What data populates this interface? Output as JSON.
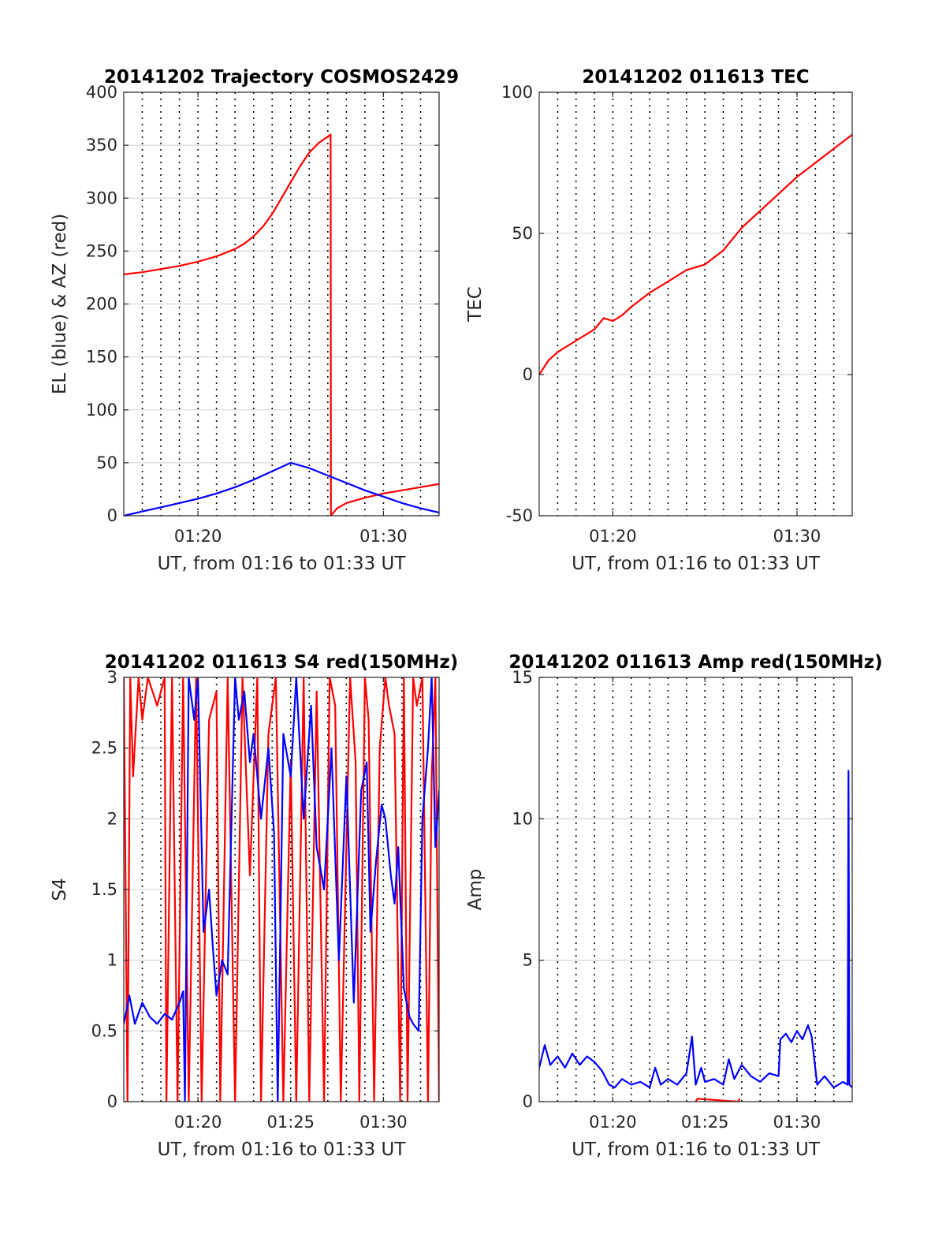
{
  "chart_data": [
    {
      "type": "line",
      "title": "20141202 Trajectory COSMOS2429",
      "xlabel": "UT, from 01:16 to 01:33 UT",
      "ylabel": "EL (blue) & AZ (red)",
      "xlim": [
        16.0,
        33.0
      ],
      "ylim": [
        0,
        400
      ],
      "xticks": [
        20,
        30
      ],
      "xticklabels": [
        "01:20",
        "01:30"
      ],
      "yticks": [
        0,
        50,
        100,
        150,
        200,
        250,
        300,
        350,
        400
      ],
      "yticklabels": [
        "0",
        "50",
        "100",
        "150",
        "200",
        "250",
        "300",
        "350",
        "400"
      ],
      "vertical_dotted_grid": true,
      "series": [
        {
          "color": "#ff0000",
          "x": [
            16.0,
            17,
            18,
            19,
            20,
            21,
            22,
            22.5,
            23,
            23.5,
            24,
            24.5,
            25,
            25.5,
            26,
            26.5,
            27.15,
            27.17,
            27.5,
            28,
            29,
            30,
            31,
            32,
            33
          ],
          "y": [
            228,
            230,
            233,
            236,
            240,
            245,
            252,
            257,
            264,
            273,
            285,
            300,
            315,
            330,
            343,
            352,
            360,
            0,
            7,
            12,
            17,
            21,
            24,
            27,
            30
          ]
        },
        {
          "color": "#0000ff",
          "x": [
            16.0,
            17,
            18,
            19,
            20,
            21,
            22,
            23,
            24,
            25,
            26,
            27,
            28,
            29,
            30,
            31,
            32,
            33
          ],
          "y": [
            0,
            4,
            8,
            12,
            16,
            21,
            27,
            34,
            42,
            50,
            45,
            38,
            31,
            24,
            18,
            12,
            7,
            3
          ]
        }
      ]
    },
    {
      "type": "line",
      "title": "20141202 011613 TEC",
      "xlabel": "UT, from 01:16 to 01:33 UT",
      "ylabel": "TEC",
      "xlim": [
        16.0,
        33.0
      ],
      "ylim": [
        -50,
        100
      ],
      "xticks": [
        20,
        30
      ],
      "xticklabels": [
        "01:20",
        "01:30"
      ],
      "yticks": [
        -50,
        0,
        50,
        100
      ],
      "yticklabels": [
        "-50",
        "0",
        "50",
        "100"
      ],
      "vertical_dotted_grid": true,
      "series": [
        {
          "color": "#ff0000",
          "x": [
            16.0,
            16.5,
            17,
            18,
            19,
            19.5,
            20,
            20.5,
            21,
            22,
            23,
            24,
            25,
            26,
            27,
            28,
            29,
            30,
            31,
            32,
            33
          ],
          "y": [
            0,
            5,
            8,
            12,
            16,
            20,
            19,
            21,
            24,
            29,
            33,
            37,
            39,
            44,
            52,
            58,
            64,
            70,
            75,
            80,
            85
          ]
        }
      ]
    },
    {
      "type": "line",
      "title": "20141202 011613 S4 red(150MHz)",
      "xlabel": "UT, from 01:16 to 01:33 UT",
      "ylabel": "S4",
      "xlim": [
        16.0,
        33.0
      ],
      "ylim": [
        0,
        3
      ],
      "xticks": [
        20,
        25,
        30
      ],
      "xticklabels": [
        "01:20",
        "01:25",
        "01:30"
      ],
      "yticks": [
        0,
        0.5,
        1,
        1.5,
        2,
        2.5,
        3
      ],
      "yticklabels": [
        "0",
        "0.5",
        "1",
        "1.5",
        "2",
        "2.5",
        "3"
      ],
      "vertical_dotted_grid": true,
      "series": [
        {
          "color": "#ff0000",
          "x": [
            16.0,
            16.2,
            16.35,
            16.5,
            16.8,
            17.0,
            17.3,
            17.8,
            18.2,
            18.3,
            18.6,
            18.9,
            19.2,
            19.5,
            19.9,
            20.2,
            20.6,
            21.0,
            21.2,
            21.6,
            22.0,
            22.4,
            22.8,
            23.2,
            23.4,
            23.8,
            24.2,
            24.6,
            25.0,
            25.3,
            25.7,
            26.0,
            26.4,
            26.8,
            27.1,
            27.4,
            27.7,
            28.2,
            28.5,
            28.7,
            29.0,
            29.2,
            29.5,
            29.8,
            30.1,
            30.3,
            30.6,
            30.9,
            31.1,
            31.3,
            31.6,
            31.8,
            32.1,
            32.4,
            32.6,
            32.8,
            33.0
          ],
          "y": [
            3,
            0,
            3,
            2.3,
            3,
            2.7,
            3,
            2.8,
            3,
            0,
            3,
            0,
            3,
            0,
            3,
            0,
            2.7,
            2.9,
            0,
            3,
            0,
            3,
            1.6,
            3,
            0,
            2.6,
            3,
            0,
            2.4,
            0,
            3,
            0,
            2.9,
            0,
            3,
            2.8,
            0,
            3,
            2.4,
            0,
            3,
            2.7,
            0,
            2.5,
            3,
            2.8,
            2.6,
            0,
            3,
            0,
            3,
            2.8,
            3,
            0,
            2.3,
            3,
            0
          ]
        },
        {
          "color": "#0000ff",
          "x": [
            16.0,
            16.3,
            16.6,
            17.0,
            17.4,
            17.8,
            18.2,
            18.6,
            19.0,
            19.2,
            19.3,
            19.5,
            19.8,
            20.0,
            20.3,
            20.6,
            20.8,
            21.0,
            21.3,
            21.6,
            22.0,
            22.2,
            22.5,
            22.8,
            23.0,
            23.4,
            23.8,
            24.1,
            24.3,
            24.6,
            25.0,
            25.3,
            25.7,
            26.1,
            26.4,
            26.8,
            27.2,
            27.6,
            28.0,
            28.4,
            28.8,
            29.1,
            29.3,
            29.6,
            29.9,
            30.1,
            30.4,
            30.6,
            30.8,
            31.1,
            31.4,
            31.6,
            31.9,
            32.1,
            32.4,
            32.6,
            32.8,
            33.0
          ],
          "y": [
            0.55,
            0.75,
            0.55,
            0.7,
            0.6,
            0.55,
            0.62,
            0.58,
            0.7,
            0.78,
            0,
            3,
            2.7,
            3,
            1.2,
            1.5,
            1.1,
            0.75,
            1.0,
            0.9,
            3,
            2.7,
            2.9,
            2.4,
            2.6,
            2.0,
            2.5,
            1.9,
            0,
            2.6,
            2.3,
            3,
            2.0,
            2.8,
            1.8,
            1.5,
            2.5,
            1.0,
            2.3,
            0.7,
            2.2,
            2.4,
            1.2,
            1.7,
            2.1,
            2.0,
            1.6,
            1.4,
            1.8,
            0.8,
            0.6,
            0.55,
            0.5,
            2.0,
            2.5,
            3,
            1.8,
            2.2
          ]
        }
      ]
    },
    {
      "type": "line",
      "title": "20141202 011613 Amp red(150MHz)",
      "xlabel": "UT, from 01:16 to 01:33 UT",
      "ylabel": "Amp",
      "xlim": [
        16.0,
        33.0
      ],
      "ylim": [
        0,
        15
      ],
      "xticks": [
        20,
        25,
        30
      ],
      "xticklabels": [
        "01:20",
        "01:25",
        "01:30"
      ],
      "yticks": [
        0,
        5,
        10,
        15
      ],
      "yticklabels": [
        "0",
        "5",
        "10",
        "15"
      ],
      "vertical_dotted_grid": true,
      "series": [
        {
          "color": "#0000ff",
          "x": [
            16.0,
            16.3,
            16.6,
            17.0,
            17.4,
            17.8,
            18.2,
            18.6,
            19.0,
            19.4,
            19.8,
            20.1,
            20.5,
            21.0,
            21.5,
            22.0,
            22.3,
            22.6,
            23.0,
            23.5,
            24.0,
            24.3,
            24.5,
            24.8,
            25.0,
            25.5,
            26.0,
            26.3,
            26.6,
            27.0,
            27.5,
            28.0,
            28.5,
            29.0,
            29.1,
            29.4,
            29.7,
            30.0,
            30.3,
            30.6,
            30.8,
            31.1,
            31.5,
            32.0,
            32.5,
            32.75,
            32.8,
            32.85,
            33.0
          ],
          "y": [
            1.2,
            2.0,
            1.3,
            1.6,
            1.2,
            1.7,
            1.3,
            1.6,
            1.4,
            1.1,
            0.6,
            0.5,
            0.8,
            0.6,
            0.7,
            0.5,
            1.2,
            0.6,
            0.8,
            0.6,
            1.0,
            2.3,
            0.6,
            1.2,
            0.7,
            0.8,
            0.6,
            1.5,
            0.8,
            1.3,
            0.9,
            0.7,
            1.0,
            0.9,
            2.2,
            2.4,
            2.1,
            2.5,
            2.2,
            2.7,
            2.3,
            0.6,
            0.9,
            0.5,
            0.7,
            0.6,
            11.7,
            0.6,
            0.5
          ]
        },
        {
          "color": "#ff0000",
          "x": [
            24.5,
            24.6,
            26.8,
            26.9
          ],
          "y": [
            0,
            0.1,
            0,
            0.1
          ]
        }
      ]
    }
  ]
}
